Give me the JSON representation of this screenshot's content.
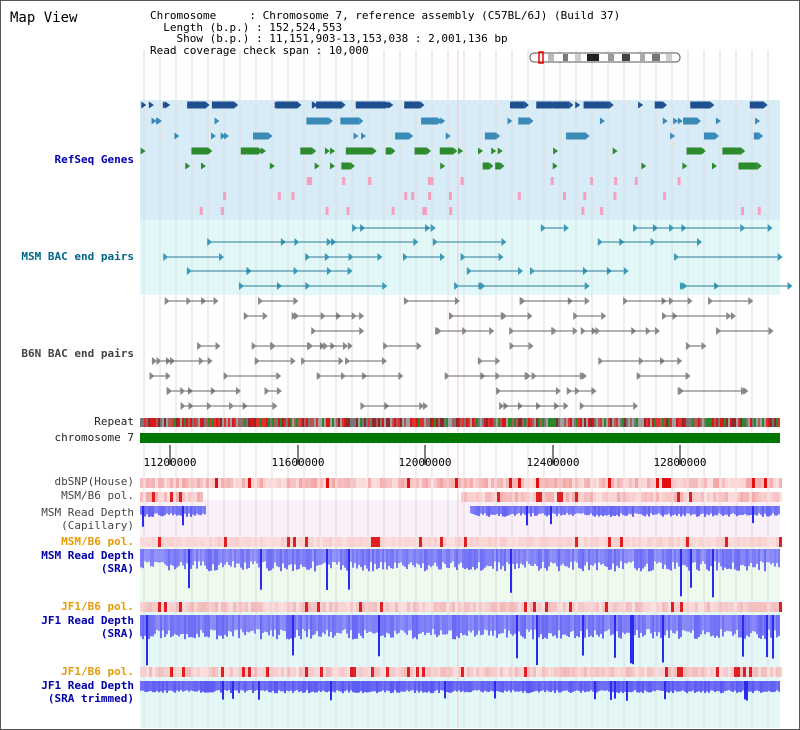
{
  "title": "Map View",
  "header": {
    "chromosome_label": "Chromosome",
    "chromosome_value": "Chromosome 7, reference assembly (C57BL/6J) (Build 37)",
    "length_label": "Length (b.p.)",
    "length_value": "152,524,553",
    "show_label": "Show (b.p.)",
    "show_value": "11,151,903-13,153,038 : 2,001,136 bp",
    "coverage_label": "Read coverage check span",
    "coverage_value": "10,000"
  },
  "tracks": {
    "refseq": "RefSeq Genes",
    "msm_bac": "MSM BAC end pairs",
    "b6n_bac": "B6N BAC end pairs",
    "repeat": "Repeat",
    "chromosome": "chromosome 7",
    "dbsnp": "dbSNP(House)",
    "msm_b6_pol_1": "MSM/B6 pol.",
    "msm_depth_cap_1": "MSM Read Depth",
    "msm_depth_cap_2": "(Capillary)",
    "msm_b6_pol_2": "MSM/B6 pol.",
    "msm_depth_sra_1": "MSM Read Depth",
    "msm_depth_sra_2": "(SRA)",
    "jf1_b6_pol_1": "JF1/B6 pol.",
    "jf1_depth_sra_1": "JF1 Read Depth",
    "jf1_depth_sra_2": "(SRA)",
    "jf1_b6_pol_2": "JF1/B6 pol.",
    "jf1_depth_trim_1": "JF1 Read Depth",
    "jf1_depth_trim_2": "(SRA trimmed)"
  },
  "axis": {
    "ticks": [
      "11200000",
      "11600000",
      "12000000",
      "12400000",
      "12800000"
    ]
  },
  "colors": {
    "refseq_bg": "#d8ecf8",
    "msm_bac_bg": "#e2f8f8",
    "chromosome_bar": "#007700",
    "depth_blue": "#2a2af0"
  }
}
